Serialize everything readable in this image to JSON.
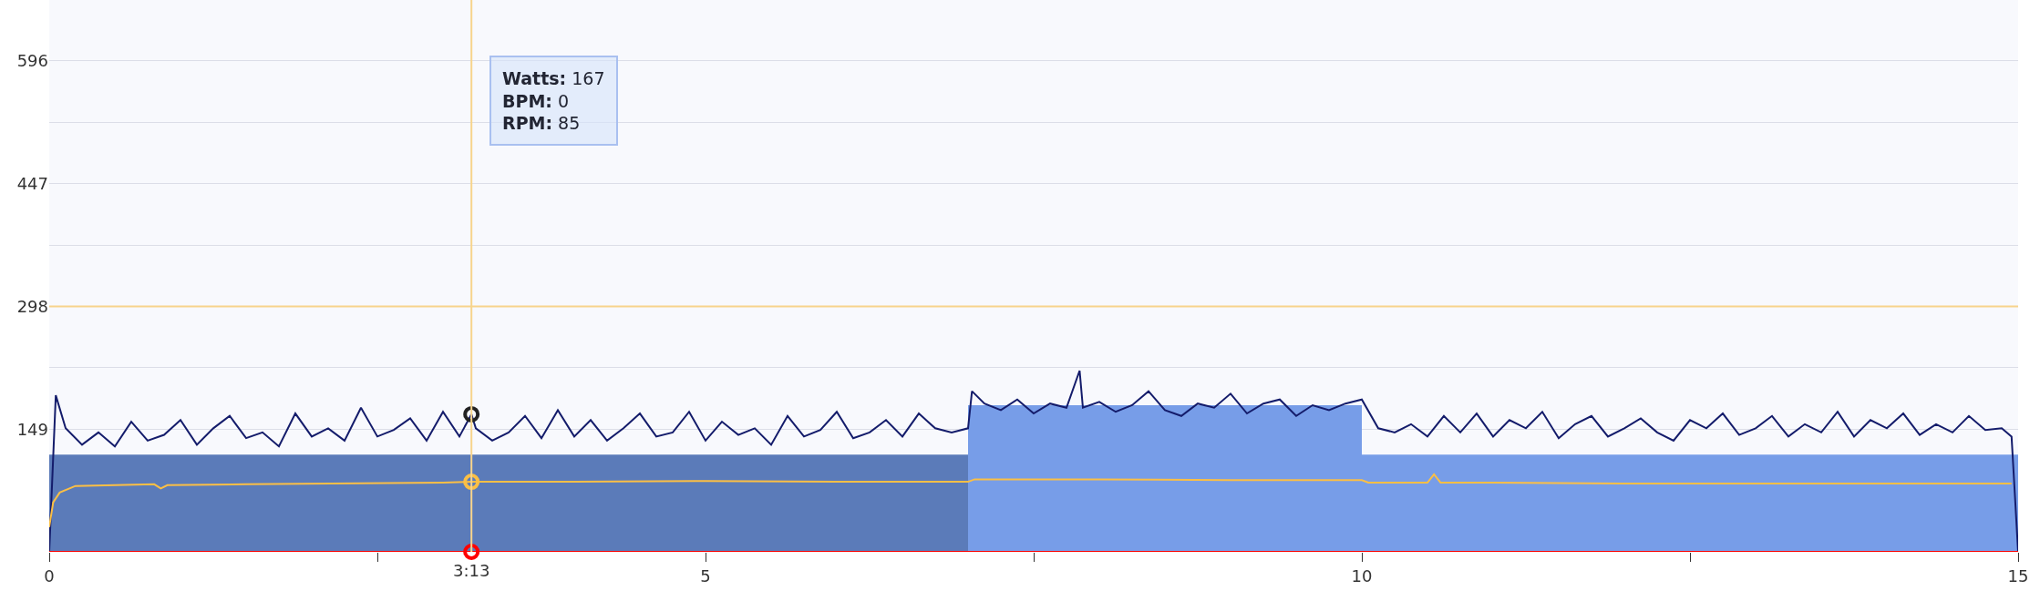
{
  "chart_data": {
    "type": "line",
    "xlim": [
      0,
      15
    ],
    "ylim": [
      0,
      670
    ],
    "xticks": [
      0,
      {
        "value": 2.5,
        "label": null
      },
      5,
      {
        "value": 7.5,
        "label": null
      },
      10,
      {
        "value": 12.5,
        "label": null
      },
      15
    ],
    "yticks": [
      149,
      {
        "value": 223.5,
        "label": null
      },
      298,
      {
        "value": 372.5,
        "label": null
      },
      447,
      {
        "value": 521.5,
        "label": null
      },
      596
    ],
    "grid": "y",
    "marker": "none",
    "line_style": "solid",
    "series": [
      {
        "type": "area",
        "color": "#5b7bb9",
        "x": [
          0,
          7
        ],
        "values": [
          118,
          118
        ]
      },
      {
        "type": "area",
        "color": "#779de8",
        "x": [
          7,
          10
        ],
        "values": [
          178,
          178
        ]
      },
      {
        "type": "area",
        "color": "#779de8",
        "x": [
          10,
          15
        ],
        "values": [
          118,
          118
        ]
      },
      {
        "color": "#141c6b",
        "x": [
          0,
          0.05,
          0.125,
          0.25,
          0.375,
          0.5,
          0.625,
          0.75,
          0.875,
          1.0,
          1.125,
          1.25,
          1.375,
          1.5,
          1.625,
          1.75,
          1.875,
          2.0,
          2.125,
          2.25,
          2.375,
          2.5,
          2.625,
          2.75,
          2.875,
          3.0,
          3.125,
          3.2167,
          3.25,
          3.375,
          3.5,
          3.625,
          3.75,
          3.875,
          4.0,
          4.125,
          4.25,
          4.375,
          4.5,
          4.625,
          4.75,
          4.875,
          5.0,
          5.125,
          5.25,
          5.375,
          5.5,
          5.625,
          5.75,
          5.875,
          6.0,
          6.125,
          6.25,
          6.375,
          6.5,
          6.625,
          6.75,
          6.875,
          7.0,
          7.03,
          7.125,
          7.25,
          7.375,
          7.5,
          7.625,
          7.75,
          7.85,
          7.875,
          8.0,
          8.125,
          8.25,
          8.375,
          8.5,
          8.625,
          8.75,
          8.875,
          9.0,
          9.125,
          9.25,
          9.375,
          9.5,
          9.625,
          9.75,
          9.875,
          10.0,
          10.125,
          10.25,
          10.375,
          10.5,
          10.625,
          10.75,
          10.875,
          11.0,
          11.125,
          11.25,
          11.375,
          11.5,
          11.625,
          11.75,
          11.875,
          12.0,
          12.125,
          12.25,
          12.375,
          12.5,
          12.625,
          12.75,
          12.875,
          13.0,
          13.125,
          13.25,
          13.375,
          13.5,
          13.625,
          13.75,
          13.875,
          14.0,
          14.125,
          14.25,
          14.375,
          14.5,
          14.625,
          14.75,
          14.875,
          14.95,
          15.0
        ],
        "values": [
          0,
          190,
          150,
          130,
          145,
          128,
          158,
          135,
          142,
          160,
          130,
          150,
          165,
          138,
          145,
          128,
          168,
          140,
          150,
          135,
          175,
          140,
          148,
          162,
          135,
          170,
          140,
          167,
          150,
          135,
          145,
          165,
          138,
          172,
          140,
          160,
          135,
          150,
          168,
          140,
          145,
          170,
          135,
          158,
          142,
          150,
          130,
          165,
          140,
          148,
          170,
          138,
          145,
          160,
          140,
          168,
          150,
          145,
          150,
          195,
          180,
          172,
          185,
          168,
          180,
          175,
          220,
          175,
          182,
          170,
          178,
          195,
          172,
          165,
          180,
          175,
          192,
          168,
          180,
          185,
          165,
          178,
          172,
          180,
          185,
          150,
          145,
          155,
          140,
          165,
          145,
          168,
          140,
          160,
          150,
          170,
          138,
          155,
          165,
          140,
          150,
          162,
          145,
          135,
          160,
          150,
          168,
          142,
          150,
          165,
          140,
          155,
          145,
          170,
          140,
          160,
          150,
          168,
          142,
          155,
          145,
          165,
          148,
          150,
          140,
          0
        ]
      },
      {
        "color": "#ff0000",
        "x": [
          0,
          15
        ],
        "values": [
          0,
          0
        ]
      },
      {
        "color": "#fbbf45",
        "x": [
          0,
          0.03,
          0.08,
          0.2,
          0.5,
          0.8,
          0.85,
          0.9,
          1.5,
          3,
          3.2167,
          4,
          5,
          6,
          7,
          7.05,
          8,
          9,
          10,
          10.05,
          10.5,
          10.55,
          10.6,
          11,
          12,
          13,
          14,
          14.95
        ],
        "values": [
          30,
          60,
          72,
          80,
          81,
          82,
          77,
          81,
          82,
          84,
          85,
          85,
          86,
          85,
          85,
          88,
          88,
          87,
          87,
          84,
          84,
          94,
          84,
          84,
          83,
          83,
          83,
          83
        ]
      },
      {
        "type": "scatter",
        "marker": "circle",
        "colors": [
          "#222222",
          "#ff0000",
          "#fbbf45"
        ],
        "x": [
          3.2167,
          3.2167,
          3.2167
        ],
        "values": [
          167,
          0,
          85
        ]
      }
    ],
    "ref_lines": [
      {
        "axis": "y",
        "value": 298,
        "color": "#f7d48c"
      },
      {
        "axis": "x",
        "value": 3.2167,
        "label": "3:13",
        "color": "#f7d48c"
      }
    ],
    "annotations": [
      "Watts: 167",
      "BPM: 0",
      "RPM: 85"
    ]
  }
}
